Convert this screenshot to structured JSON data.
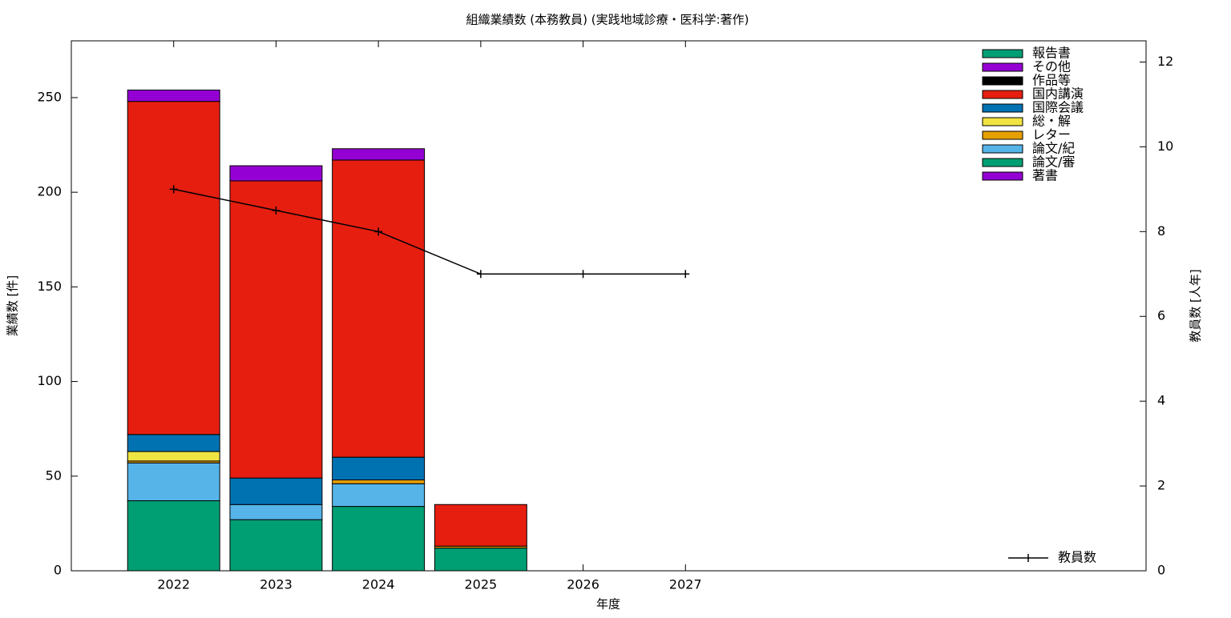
{
  "chart_data": {
    "type": "bar",
    "stacked": true,
    "title": "組織業績数 (本務教員) (実践地域診療・医科学:著作)",
    "xlabel": "年度",
    "ylabel": "業績数 [件]",
    "y2label": "教員数 [人年]",
    "x": [
      2022,
      2023,
      2024,
      2025,
      2026,
      2027
    ],
    "xlim": [
      2021,
      2031.5
    ],
    "xticks": [
      2022,
      2023,
      2024,
      2025,
      2026,
      2027
    ],
    "ylim": [
      0,
      280
    ],
    "yticks": [
      0,
      50,
      100,
      150,
      200,
      250
    ],
    "y2lim": [
      0,
      12.5
    ],
    "y2ticks": [
      0,
      2,
      4,
      6,
      8,
      10,
      12
    ],
    "legend": "top-right",
    "series": [
      {
        "name": "著書",
        "color": "#9400d3",
        "values": [
          0,
          0,
          0,
          0,
          0,
          0
        ]
      },
      {
        "name": "論文/審",
        "color": "#009e73",
        "values": [
          37,
          27,
          34,
          12,
          0,
          0
        ]
      },
      {
        "name": "論文/紀",
        "color": "#56b4e9",
        "values": [
          20,
          8,
          12,
          0,
          0,
          0
        ]
      },
      {
        "name": "レター",
        "color": "#e69f00",
        "values": [
          1,
          0,
          2,
          1,
          0,
          0
        ]
      },
      {
        "name": "総・解",
        "color": "#f0e442",
        "values": [
          5,
          0,
          0,
          0,
          0,
          0
        ]
      },
      {
        "name": "国際会議",
        "color": "#0072b2",
        "values": [
          9,
          14,
          12,
          0,
          0,
          0
        ]
      },
      {
        "name": "国内講演",
        "color": "#e51e10",
        "values": [
          176,
          157,
          157,
          22,
          0,
          0
        ]
      },
      {
        "name": "作品等",
        "color": "#000000",
        "values": [
          0,
          0,
          0,
          0,
          0,
          0
        ]
      },
      {
        "name": "その他",
        "color": "#9400d3",
        "values": [
          6,
          8,
          6,
          0,
          0,
          0
        ]
      },
      {
        "name": "報告書",
        "color": "#009e73",
        "values": [
          0,
          0,
          0,
          0,
          0,
          0
        ]
      }
    ],
    "line": {
      "name": "教員数",
      "color": "#000000",
      "axis": "y2",
      "values": [
        9,
        8.5,
        8,
        7,
        7,
        7
      ]
    }
  }
}
